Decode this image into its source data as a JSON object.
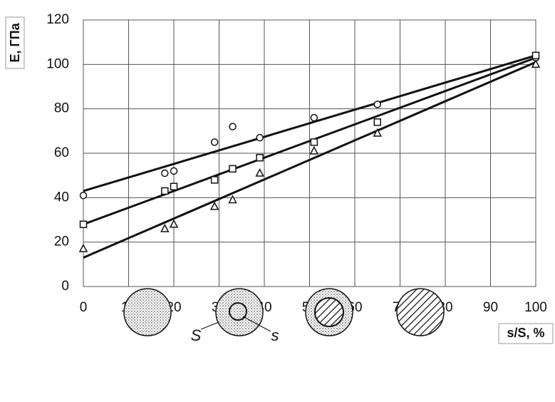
{
  "chart_data": {
    "type": "scatter",
    "x_label": "s/S, %",
    "y_label": "E, ГПа",
    "xlim": [
      0,
      100
    ],
    "ylim": [
      0,
      120
    ],
    "xticks": [
      0,
      10,
      20,
      30,
      40,
      50,
      60,
      70,
      80,
      90,
      100
    ],
    "yticks": [
      0,
      20,
      40,
      60,
      80,
      100,
      120
    ],
    "grid": true,
    "color": "#111111",
    "series": [
      {
        "marker": "circle",
        "x": [
          0,
          18,
          20,
          29,
          33,
          39,
          51,
          65,
          100
        ],
        "values": [
          41,
          51,
          52,
          65,
          72,
          67,
          76,
          82,
          103
        ]
      },
      {
        "marker": "square",
        "x": [
          0,
          18,
          20,
          29,
          33,
          39,
          51,
          65,
          100
        ],
        "values": [
          28,
          43,
          45,
          48,
          53,
          58,
          65,
          74,
          104
        ]
      },
      {
        "marker": "triangle",
        "x": [
          0,
          18,
          20,
          29,
          33,
          39,
          51,
          65,
          100
        ],
        "values": [
          17,
          26,
          28,
          36,
          39,
          51,
          61,
          69,
          100
        ]
      }
    ],
    "trendlines": [
      {
        "x": [
          0,
          100
        ],
        "values": [
          43,
          104
        ]
      },
      {
        "x": [
          0,
          100
        ],
        "values": [
          28,
          103
        ]
      },
      {
        "x": [
          0,
          100
        ],
        "values": [
          13,
          101
        ]
      }
    ]
  },
  "figure_labels": [
    "S",
    "s"
  ]
}
